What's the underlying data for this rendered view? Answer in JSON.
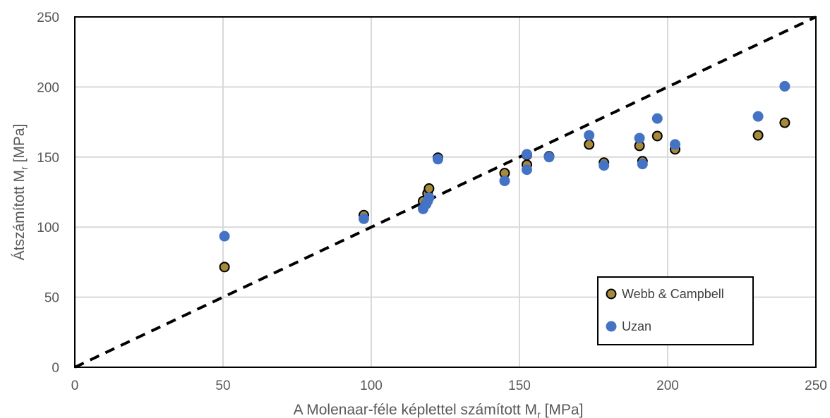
{
  "chart_data": {
    "type": "scatter",
    "xlabel": {
      "main": "A Molenaar-féle képlettel számított M",
      "sub": "r",
      "unit": " [MPa]"
    },
    "ylabel": {
      "main": "Átszámított M",
      "sub": "r",
      "unit": " [MPa]"
    },
    "xlim": [
      0,
      250
    ],
    "ylim": [
      0,
      250
    ],
    "xticks": [
      0,
      50,
      100,
      150,
      200,
      250
    ],
    "yticks": [
      0,
      50,
      100,
      150,
      200,
      250
    ],
    "grid": true,
    "legend_position": "bottom-right",
    "reference_line": {
      "style": "dashed",
      "color": "#000000",
      "from": [
        0,
        0
      ],
      "to": [
        250,
        250
      ]
    },
    "series": [
      {
        "name": "Webb & Campbell",
        "color": "#a68a3a",
        "points": [
          [
            50.5,
            71.5
          ],
          [
            97.5,
            108.5
          ],
          [
            117.5,
            118.5
          ],
          [
            118.5,
            116.5
          ],
          [
            119,
            124
          ],
          [
            119.5,
            127.5
          ],
          [
            122.5,
            149.5
          ],
          [
            145,
            138.5
          ],
          [
            152.5,
            144.5
          ],
          [
            152.5,
            151.5
          ],
          [
            160,
            150.5
          ],
          [
            173.5,
            159
          ],
          [
            178.5,
            146
          ],
          [
            190.5,
            158
          ],
          [
            191.5,
            147
          ],
          [
            196.5,
            165
          ],
          [
            202.5,
            155.5
          ],
          [
            230.5,
            165.5
          ],
          [
            239.5,
            174.5
          ]
        ]
      },
      {
        "name": "Uzan",
        "color": "#4472c4",
        "points": [
          [
            50.5,
            93.5
          ],
          [
            97.5,
            106
          ],
          [
            117.5,
            113
          ],
          [
            118.5,
            116.5
          ],
          [
            119,
            118.5
          ],
          [
            119.5,
            121
          ],
          [
            122.5,
            148.5
          ],
          [
            145,
            133
          ],
          [
            152.5,
            141
          ],
          [
            152.5,
            152
          ],
          [
            160,
            150
          ],
          [
            173.5,
            165.5
          ],
          [
            178.5,
            144
          ],
          [
            190.5,
            163.5
          ],
          [
            191.5,
            145
          ],
          [
            196.5,
            177.5
          ],
          [
            202.5,
            159
          ],
          [
            230.5,
            179
          ],
          [
            239.5,
            200.5
          ]
        ]
      }
    ]
  }
}
